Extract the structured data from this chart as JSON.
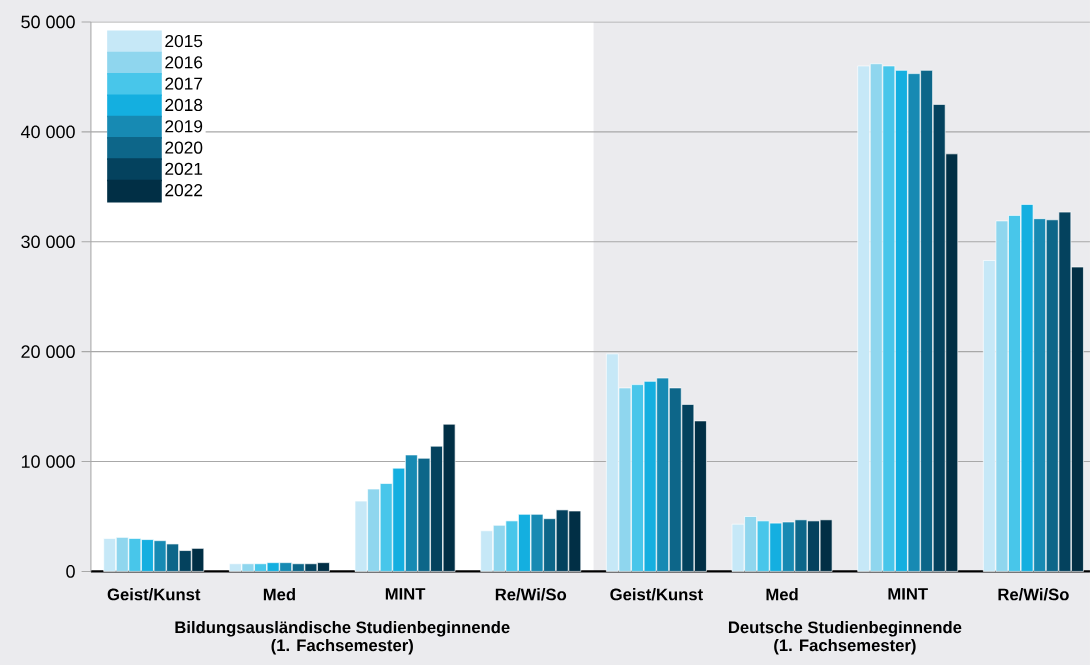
{
  "chart_data": {
    "type": "bar",
    "categories": [
      "Geist/Kunst",
      "Med",
      "MINT",
      "Re/Wi/So",
      "Geist/Kunst",
      "Med",
      "MINT",
      "Re/Wi/So"
    ],
    "series": [
      {
        "name": "2015",
        "color": "#c6e8f7",
        "values": [
          3000,
          700,
          6400,
          3700,
          19800,
          4300,
          46000,
          28300
        ]
      },
      {
        "name": "2016",
        "color": "#8fd6ee",
        "values": [
          3100,
          700,
          7500,
          4200,
          16700,
          5000,
          46200,
          31900
        ]
      },
      {
        "name": "2017",
        "color": "#48c6ea",
        "values": [
          3000,
          700,
          8000,
          4600,
          17000,
          4600,
          46000,
          32400
        ]
      },
      {
        "name": "2018",
        "color": "#14afe0",
        "values": [
          2900,
          800,
          9400,
          5200,
          17300,
          4400,
          45600,
          33400
        ]
      },
      {
        "name": "2019",
        "color": "#178ab3",
        "values": [
          2800,
          800,
          10600,
          5200,
          17600,
          4500,
          45300,
          32100
        ]
      },
      {
        "name": "2020",
        "color": "#0d6689",
        "values": [
          2500,
          700,
          10300,
          4800,
          16700,
          4700,
          45600,
          32000
        ]
      },
      {
        "name": "2021",
        "color": "#04425e",
        "values": [
          1900,
          700,
          11400,
          5600,
          15200,
          4600,
          42500,
          32700
        ]
      },
      {
        "name": "2022",
        "color": "#012f45",
        "values": [
          2100,
          800,
          13400,
          5500,
          13700,
          4700,
          38000,
          27700
        ]
      }
    ],
    "ylim": [
      0,
      50000
    ],
    "yticks": [
      0,
      {
        "value": 10000,
        "label": "10 000"
      },
      {
        "value": 20000,
        "label": "20 000"
      },
      {
        "value": 30000,
        "label": "30 000"
      },
      {
        "value": 40000,
        "label": "40 000"
      },
      {
        "value": 50000,
        "label": "50 000"
      }
    ],
    "grid": "y",
    "legend": "top left",
    "annotations": [
      "Bildungsausländische Studienbeginnende",
      "(1. Fachsemester)",
      "Deutsche Studienbeginnende",
      "(1. Fachsemester)"
    ]
  }
}
